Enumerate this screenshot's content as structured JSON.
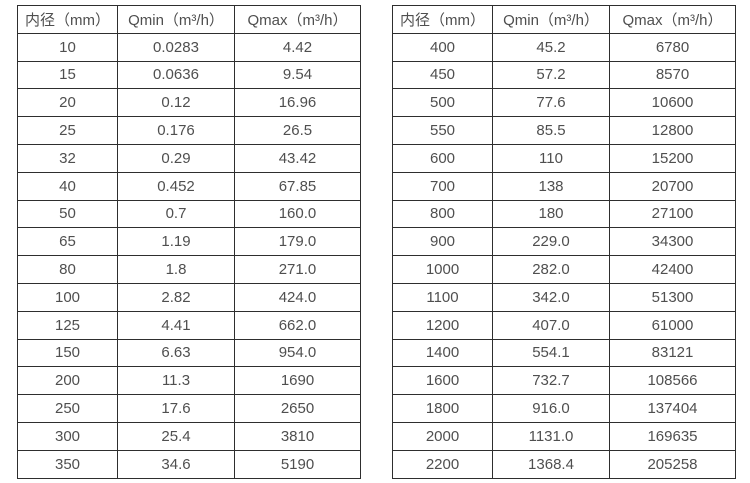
{
  "headers": [
    "内径（mm）",
    "Qmin（m³/h）",
    "Qmax（m³/h）"
  ],
  "left_table": {
    "rows": [
      [
        "10",
        "0.0283",
        "4.42"
      ],
      [
        "15",
        "0.0636",
        "9.54"
      ],
      [
        "20",
        "0.12",
        "16.96"
      ],
      [
        "25",
        "0.176",
        "26.5"
      ],
      [
        "32",
        "0.29",
        "43.42"
      ],
      [
        "40",
        "0.452",
        "67.85"
      ],
      [
        "50",
        "0.7",
        "160.0"
      ],
      [
        "65",
        "1.19",
        "179.0"
      ],
      [
        "80",
        "1.8",
        "271.0"
      ],
      [
        "100",
        "2.82",
        "424.0"
      ],
      [
        "125",
        "4.41",
        "662.0"
      ],
      [
        "150",
        "6.63",
        "954.0"
      ],
      [
        "200",
        "11.3",
        "1690"
      ],
      [
        "250",
        "17.6",
        "2650"
      ],
      [
        "300",
        "25.4",
        "3810"
      ],
      [
        "350",
        "34.6",
        "5190"
      ]
    ]
  },
  "right_table": {
    "rows": [
      [
        "400",
        "45.2",
        "6780"
      ],
      [
        "450",
        "57.2",
        "8570"
      ],
      [
        "500",
        "77.6",
        "10600"
      ],
      [
        "550",
        "85.5",
        "12800"
      ],
      [
        "600",
        "110",
        "15200"
      ],
      [
        "700",
        "138",
        "20700"
      ],
      [
        "800",
        "180",
        "27100"
      ],
      [
        "900",
        "229.0",
        "34300"
      ],
      [
        "1000",
        "282.0",
        "42400"
      ],
      [
        "1100",
        "342.0",
        "51300"
      ],
      [
        "1200",
        "407.0",
        "61000"
      ],
      [
        "1400",
        "554.1",
        "83121"
      ],
      [
        "1600",
        "732.7",
        "108566"
      ],
      [
        "1800",
        "916.0",
        "137404"
      ],
      [
        "2000",
        "1131.0",
        "169635"
      ],
      [
        "2200",
        "1368.4",
        "205258"
      ]
    ]
  },
  "colors": {
    "border": "#2e2e2e",
    "text": "#4f4f4f",
    "background": "#ffffff"
  }
}
